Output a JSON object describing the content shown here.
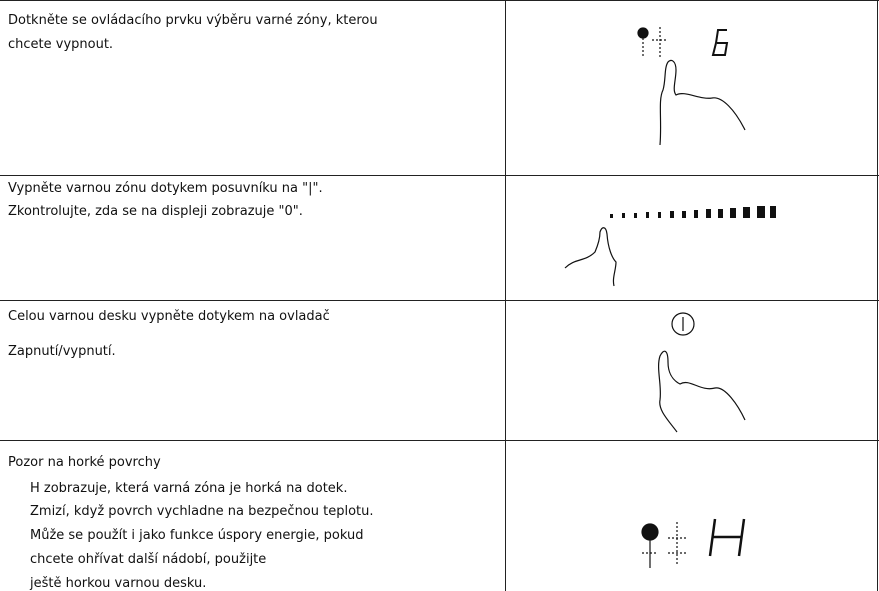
{
  "rows": [
    {
      "lines": [
        "Dotkněte se ovládacího prvku výběru varné zóny, kterou",
        "chcete vypnout."
      ]
    },
    {
      "lines": [
        "Vypněte varnou zónu dotykem posuvníku na \"|\".",
        "Zkontrolujte, zda se na displeji zobrazuje \"0\"."
      ]
    },
    {
      "lines": [
        "Celou varnou desku vypněte dotykem na ovladač",
        "Zapnutí/vypnutí."
      ]
    },
    {
      "lines": [
        "Pozor na horké povrchy",
        "H zobrazuje, která varná zóna je horká na dotek.",
        "Zmizí, když povrch vychladne na bezpečnou teplotu.",
        "Může se použít i jako funkce úspory energie, pokud",
        "chcete ohřívat další nádobí, použijte",
        "ještě horkou varnou desku."
      ]
    }
  ]
}
